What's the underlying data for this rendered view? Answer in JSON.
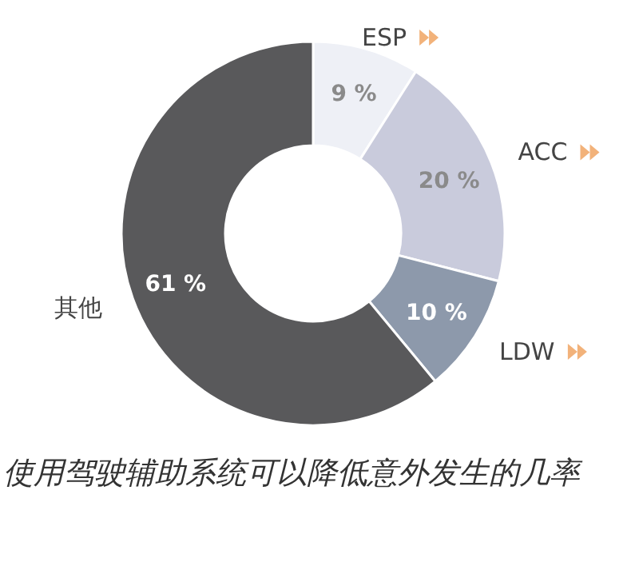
{
  "chart_data": {
    "type": "donut",
    "categories": [
      "ESP",
      "ACC",
      "LDW",
      "其他"
    ],
    "values": [
      9,
      20,
      10,
      61
    ],
    "colors": [
      "#eef0f6",
      "#c9cbdc",
      "#8d99ab",
      "#59595b"
    ],
    "value_labels": [
      "9 %",
      "20 %",
      "10 %",
      "61 %"
    ],
    "annotations": [
      "使用驾驶辅助系统可以降低意外发生的几率"
    ]
  }
}
